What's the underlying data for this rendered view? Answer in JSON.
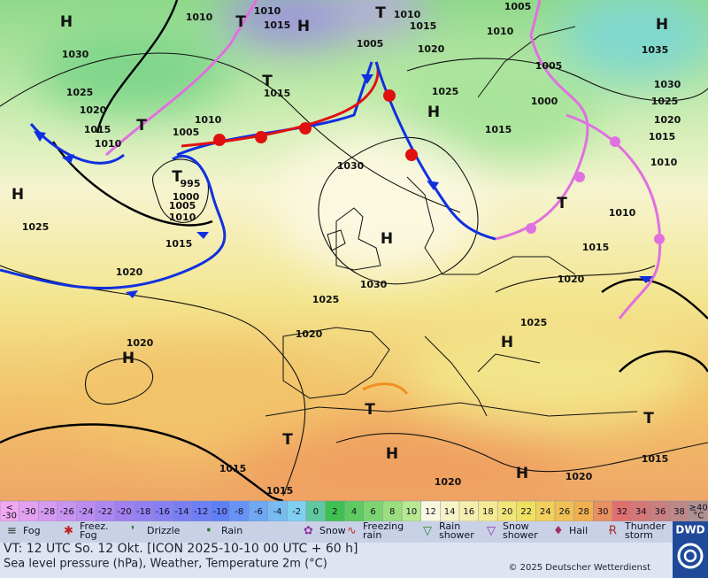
{
  "map": {
    "labels": [
      "H",
      "H",
      "H",
      "H",
      "H",
      "H",
      "H",
      "H",
      "H",
      "H",
      "T",
      "T",
      "T",
      "T",
      "T",
      "T",
      "T",
      "T",
      "T",
      "1010",
      "1010",
      "1015",
      "1010",
      "1015",
      "1005",
      "1005",
      "1010",
      "1035",
      "1030",
      "1025",
      "1020",
      "1015",
      "1010",
      "1010",
      "1005",
      "1020",
      "1015",
      "1025",
      "1005",
      "1000",
      "1030",
      "1025",
      "1020",
      "1015",
      "1010",
      "995",
      "1000",
      "1005",
      "1010",
      "1015",
      "1030",
      "1015",
      "1025",
      "1020",
      "1010",
      "1015",
      "1020",
      "1030",
      "1025",
      "1020",
      "1020",
      "1025",
      "1015",
      "1015",
      "1020",
      "1020",
      "1015"
    ]
  },
  "scale": {
    "values": [
      "<\n-30",
      -30,
      -28,
      -26,
      -24,
      -22,
      -20,
      -18,
      -16,
      -14,
      -12,
      -10,
      -8,
      -6,
      -4,
      -2,
      0,
      2,
      4,
      6,
      8,
      10,
      12,
      14,
      16,
      18,
      20,
      22,
      24,
      26,
      28,
      30,
      32,
      34,
      36,
      38,
      "≥40\n°C"
    ]
  },
  "legend": [
    "Fog",
    "Freez.\nFog",
    "Drizzle",
    "Rain",
    "Snow",
    "Freezing\nrain",
    "Rain\nshower",
    "Snow\nshower",
    "Hail",
    "Thunder\nstorm"
  ],
  "footer": {
    "valid_time": "VT: 12 UTC So.  12 Okt. [ICON 2025-10-10  00 UTC + 60 h]",
    "description": "Sea level pressure (hPa), Weather, Temperature 2m (°C)",
    "copyright": "© 2025 Deutscher Wetterdienst",
    "logo": "DWD"
  }
}
